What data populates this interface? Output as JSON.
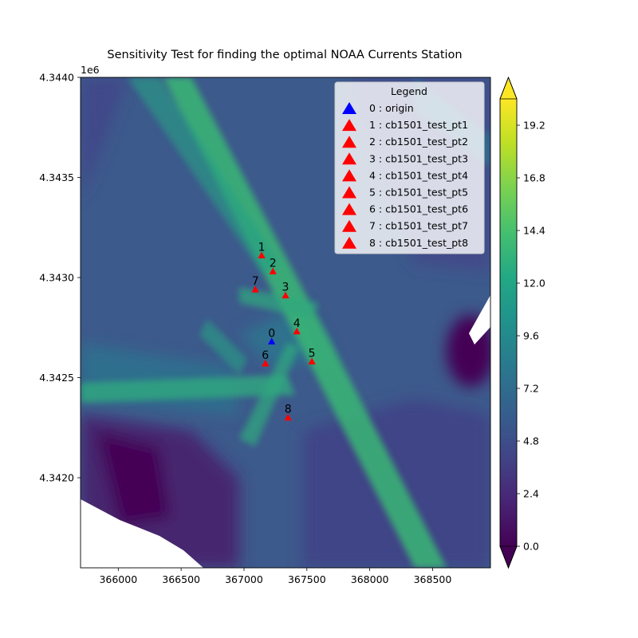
{
  "chart_data": {
    "type": "contour",
    "title": "Sensitivity Test for finding the optimal NOAA Currents Station",
    "xlabel": "",
    "ylabel": "",
    "y_offset_label": "1e6",
    "xlim": [
      365700,
      368960
    ],
    "ylim": [
      4.34155,
      4.344
    ],
    "x_ticks": [
      366000,
      366500,
      367000,
      367500,
      368000,
      368500
    ],
    "x_tick_labels": [
      "366000",
      "366500",
      "367000",
      "367500",
      "368000",
      "368500"
    ],
    "y_ticks": [
      4.342,
      4.3425,
      4.343,
      4.3435,
      4.344
    ],
    "y_tick_labels": [
      "4.3420",
      "4.3425",
      "4.3430",
      "4.3435",
      "4.3440"
    ],
    "colorbar": {
      "colormap": "viridis",
      "vmin": 0.0,
      "vmax": 20.4,
      "extend": "both",
      "ticks": [
        0.0,
        2.4,
        4.8,
        7.2,
        9.6,
        12.0,
        14.4,
        16.8,
        19.2
      ],
      "tick_labels": [
        "0.0",
        "2.4",
        "4.8",
        "7.2",
        "9.6",
        "12.0",
        "14.4",
        "16.8",
        "19.2"
      ]
    },
    "legend": {
      "title": "Legend",
      "placement": "upper right",
      "entries": [
        {
          "label": "0 : origin",
          "color": "#0000ff"
        },
        {
          "label": "1 : cb1501_test_pt1",
          "color": "#ff0000"
        },
        {
          "label": "2 : cb1501_test_pt2",
          "color": "#ff0000"
        },
        {
          "label": "3 : cb1501_test_pt3",
          "color": "#ff0000"
        },
        {
          "label": "4 : cb1501_test_pt4",
          "color": "#ff0000"
        },
        {
          "label": "5 : cb1501_test_pt5",
          "color": "#ff0000"
        },
        {
          "label": "6 : cb1501_test_pt6",
          "color": "#ff0000"
        },
        {
          "label": "7 : cb1501_test_pt7",
          "color": "#ff0000"
        },
        {
          "label": "8 : cb1501_test_pt8",
          "color": "#ff0000"
        }
      ]
    },
    "points": [
      {
        "label": "0",
        "x": 367220,
        "y": 4.34268,
        "color": "#0000ff"
      },
      {
        "label": "1",
        "x": 367140,
        "y": 4.34311,
        "color": "#ff0000"
      },
      {
        "label": "2",
        "x": 367230,
        "y": 4.34303,
        "color": "#ff0000"
      },
      {
        "label": "3",
        "x": 367330,
        "y": 4.34291,
        "color": "#ff0000"
      },
      {
        "label": "4",
        "x": 367420,
        "y": 4.34273,
        "color": "#ff0000"
      },
      {
        "label": "5",
        "x": 367540,
        "y": 4.34258,
        "color": "#ff0000"
      },
      {
        "label": "6",
        "x": 367170,
        "y": 4.34257,
        "color": "#ff0000"
      },
      {
        "label": "7",
        "x": 367090,
        "y": 4.34294,
        "color": "#ff0000"
      },
      {
        "label": "8",
        "x": 367350,
        "y": 4.3423,
        "color": "#ff0000"
      }
    ]
  }
}
